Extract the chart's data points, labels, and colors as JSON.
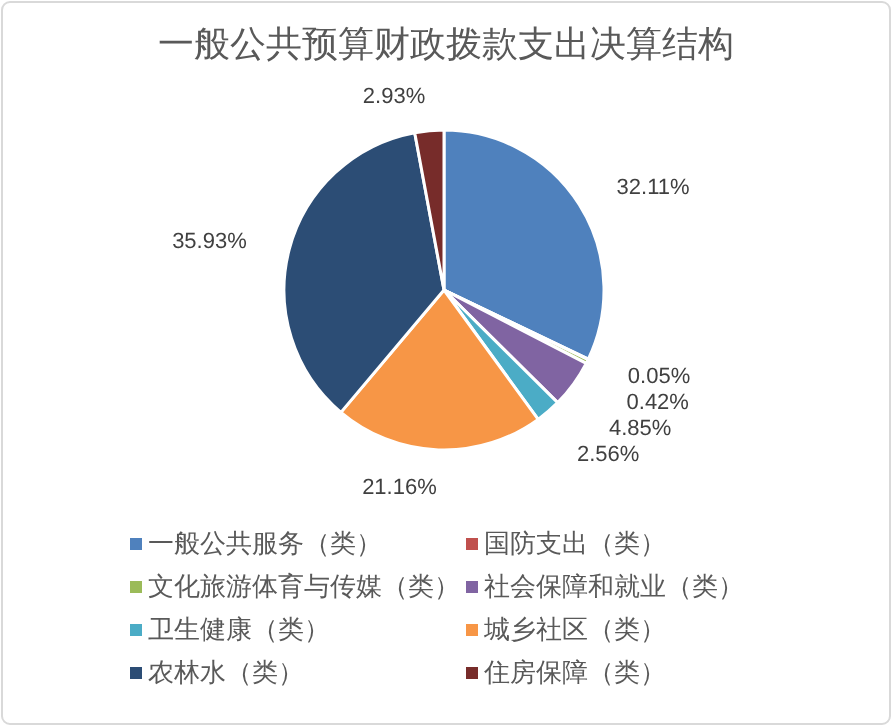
{
  "chart_data": {
    "type": "pie",
    "title": "一般公共预算财政拨款支出决算结构",
    "categories": [
      "一般公共服务（类）",
      "国防支出（类）",
      "文化旅游体育与传媒（类）",
      "社会保障和就业（类）",
      "卫生健康（类）",
      "城乡社区（类）",
      "农林水（类）",
      "住房保障（类）"
    ],
    "values": [
      32.11,
      0.05,
      0.42,
      4.85,
      2.56,
      21.16,
      35.93,
      2.93
    ],
    "value_labels": [
      "32.11%",
      "0.05%",
      "0.42%",
      "4.85%",
      "2.56%",
      "21.16%",
      "35.93%",
      "2.93%"
    ],
    "colors": [
      "#4f81bd",
      "#c0504d",
      "#9bbb59",
      "#8064a2",
      "#4bacc6",
      "#f79646",
      "#2c4d75",
      "#772c2a"
    ],
    "legend": "bottom"
  }
}
